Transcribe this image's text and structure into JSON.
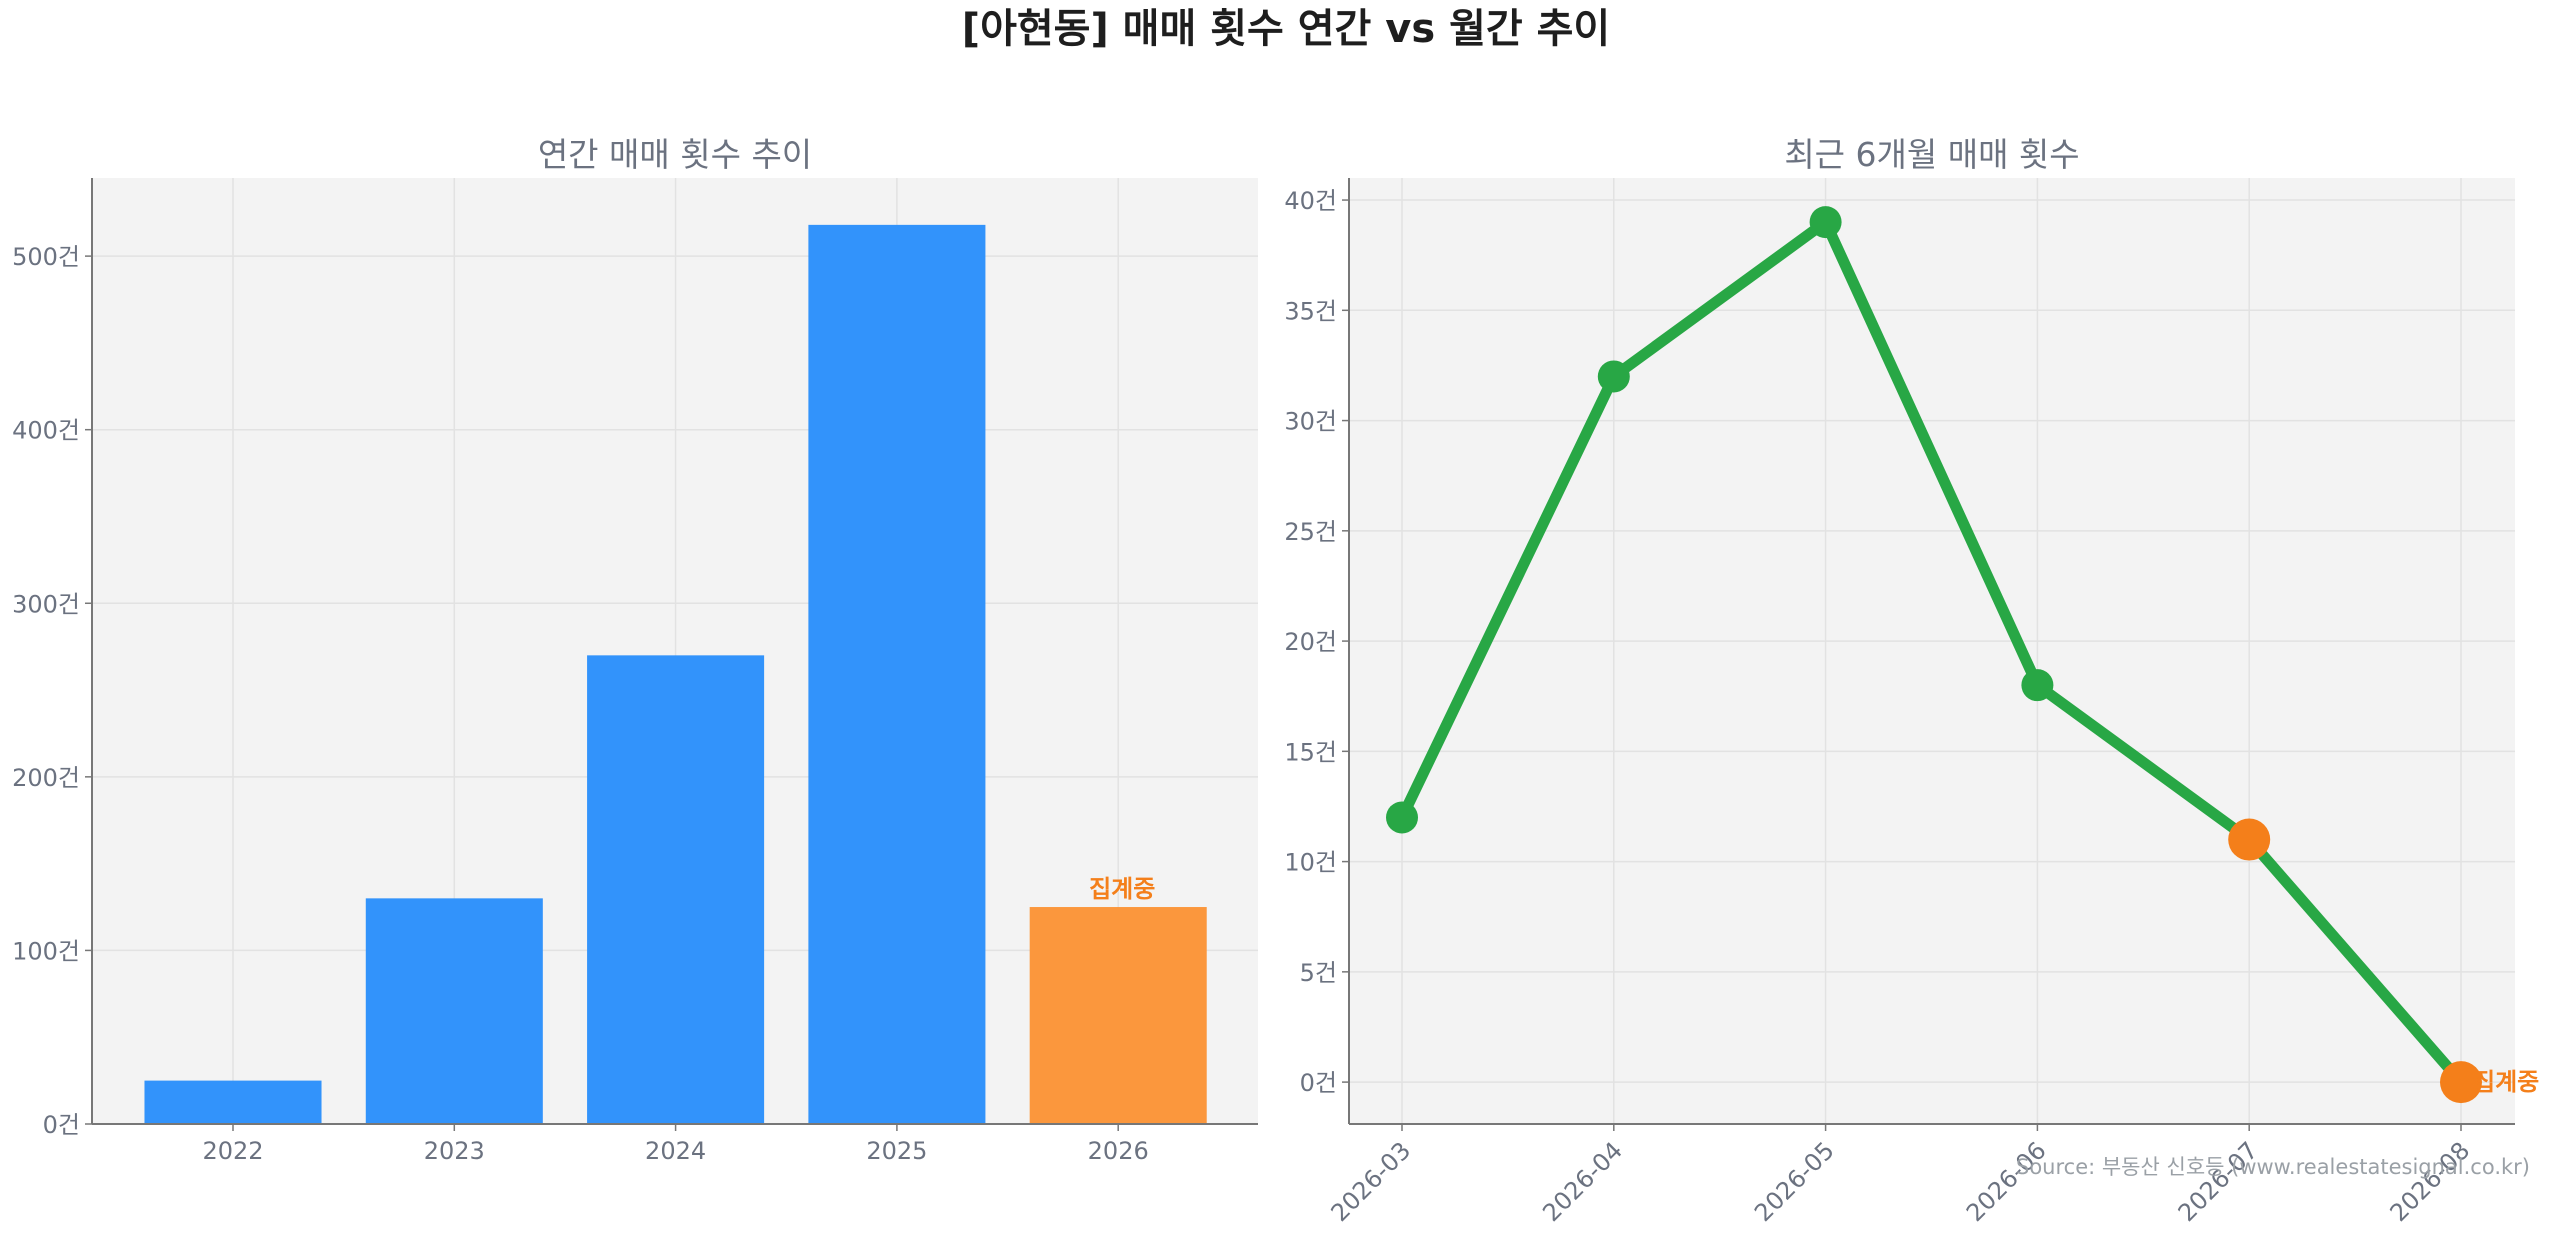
{
  "figure": {
    "title": "[아현동] 매매 횟수 연간 vs 월간 추이",
    "source": "Source: 부동산 신호등 (www.realestatesignal.co.kr)"
  },
  "colors": {
    "bar": "#3293fb",
    "bar_partial": "#fb973d",
    "line": "#28a745",
    "point_partial": "#f47f1a",
    "plot_bg": "#f3f3f3",
    "annotation": "#f47f1a"
  },
  "chart_data": [
    {
      "type": "bar",
      "title": "연간 매매 횟수 추이",
      "categories": [
        "2022",
        "2023",
        "2024",
        "2025",
        "2026"
      ],
      "values": [
        25,
        130,
        270,
        518,
        125
      ],
      "ylim": [
        0,
        545
      ],
      "yticks": [
        0,
        100,
        200,
        300,
        400,
        500
      ],
      "ytick_suffix": "건",
      "partial_index": 4,
      "annotation": "집계중",
      "grid": true
    },
    {
      "type": "line",
      "title": "최근 6개월 매매 횟수",
      "x": [
        "2026-03",
        "2026-04",
        "2026-05",
        "2026-06",
        "2026-07",
        "2026-08"
      ],
      "values": [
        12,
        32,
        39,
        18,
        11,
        0
      ],
      "ylim": [
        -1.9,
        41
      ],
      "yticks": [
        0,
        5,
        10,
        15,
        20,
        25,
        30,
        35,
        40
      ],
      "ytick_suffix": "건",
      "partial_indices": [
        4,
        5
      ],
      "annotation": "집계중",
      "grid": true
    }
  ]
}
